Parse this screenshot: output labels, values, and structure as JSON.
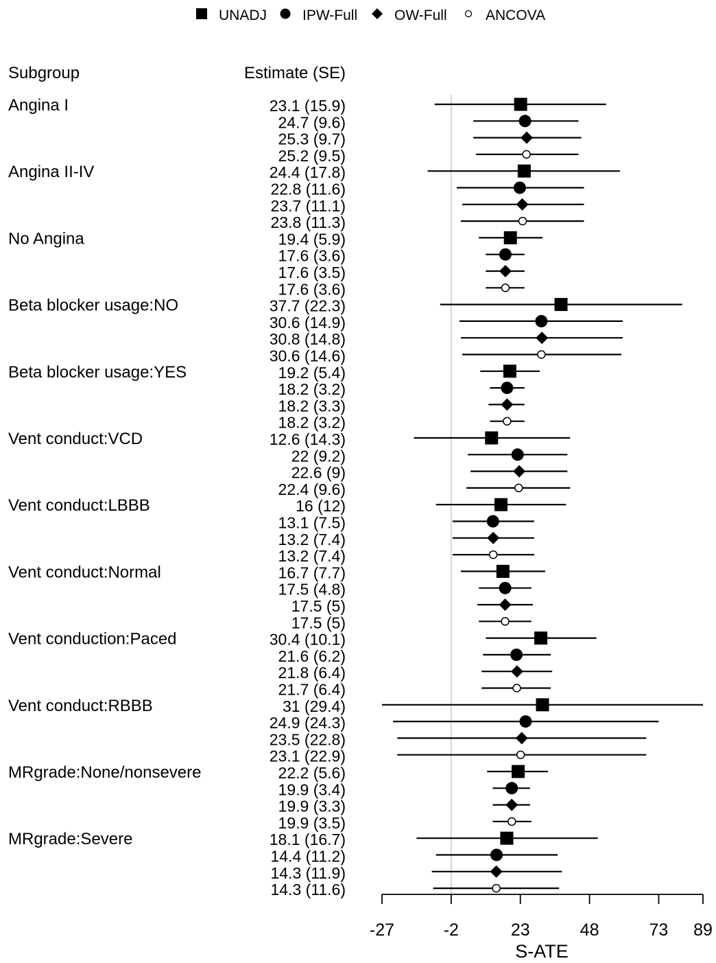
{
  "chart_data": {
    "type": "forest",
    "legend": {
      "placement": "top-center",
      "entries": [
        {
          "label": "UNADJ",
          "marker": "filled-square"
        },
        {
          "label": "IPW-Full",
          "marker": "filled-circle"
        },
        {
          "label": "OW-Full",
          "marker": "filled-diamond"
        },
        {
          "label": "ANCOVA",
          "marker": "open-circle"
        }
      ]
    },
    "column_headers": {
      "subgroup": "Subgroup",
      "estimate": "Estimate (SE)"
    },
    "xlabel": "S-ATE",
    "xlim": [
      -27,
      89
    ],
    "xticks": [
      -27,
      -2,
      23,
      48,
      73,
      89
    ],
    "reference_line": -2,
    "groups": [
      {
        "name": "Angina I",
        "rows": [
          {
            "method": "UNADJ",
            "est": 23.1,
            "label": "23.1 (15.9)",
            "lo": -8,
            "hi": 54
          },
          {
            "method": "IPW-Full",
            "est": 24.7,
            "label": "24.7 (9.6)",
            "lo": 6,
            "hi": 44
          },
          {
            "method": "OW-Full",
            "est": 25.3,
            "label": "25.3 (9.7)",
            "lo": 6,
            "hi": 45
          },
          {
            "method": "ANCOVA",
            "est": 25.2,
            "label": "25.2 (9.5)",
            "lo": 7,
            "hi": 44
          }
        ]
      },
      {
        "name": "Angina II-IV",
        "rows": [
          {
            "method": "UNADJ",
            "est": 24.4,
            "label": "24.4 (17.8)",
            "lo": -10.5,
            "hi": 59
          },
          {
            "method": "IPW-Full",
            "est": 22.8,
            "label": "22.8 (11.6)",
            "lo": 0,
            "hi": 46
          },
          {
            "method": "OW-Full",
            "est": 23.7,
            "label": "23.7 (11.1)",
            "lo": 2,
            "hi": 46
          },
          {
            "method": "ANCOVA",
            "est": 23.8,
            "label": "23.8 (11.3)",
            "lo": 1.5,
            "hi": 46
          }
        ]
      },
      {
        "name": "No Angina",
        "rows": [
          {
            "method": "UNADJ",
            "est": 19.4,
            "label": "19.4 (5.9)",
            "lo": 8,
            "hi": 31
          },
          {
            "method": "IPW-Full",
            "est": 17.6,
            "label": "17.6 (3.6)",
            "lo": 10.5,
            "hi": 24.5
          },
          {
            "method": "OW-Full",
            "est": 17.6,
            "label": "17.6 (3.5)",
            "lo": 10.5,
            "hi": 24.5
          },
          {
            "method": "ANCOVA",
            "est": 17.6,
            "label": "17.6 (3.6)",
            "lo": 10.5,
            "hi": 24.5
          }
        ]
      },
      {
        "name": "Beta blocker usage:NO",
        "rows": [
          {
            "method": "UNADJ",
            "est": 37.7,
            "label": "37.7 (22.3)",
            "lo": -6,
            "hi": 81.5
          },
          {
            "method": "IPW-Full",
            "est": 30.6,
            "label": "30.6 (14.9)",
            "lo": 1,
            "hi": 60
          },
          {
            "method": "OW-Full",
            "est": 30.8,
            "label": "30.8 (14.8)",
            "lo": 1.5,
            "hi": 60
          },
          {
            "method": "ANCOVA",
            "est": 30.6,
            "label": "30.6 (14.6)",
            "lo": 2,
            "hi": 59.5
          }
        ]
      },
      {
        "name": "Beta blocker usage:YES",
        "rows": [
          {
            "method": "UNADJ",
            "est": 19.2,
            "label": "19.2 (5.4)",
            "lo": 8.5,
            "hi": 30
          },
          {
            "method": "IPW-Full",
            "est": 18.2,
            "label": "18.2 (3.2)",
            "lo": 12,
            "hi": 24.5
          },
          {
            "method": "OW-Full",
            "est": 18.2,
            "label": "18.2 (3.3)",
            "lo": 11.5,
            "hi": 24.5
          },
          {
            "method": "ANCOVA",
            "est": 18.2,
            "label": "18.2 (3.2)",
            "lo": 12,
            "hi": 24.5
          }
        ]
      },
      {
        "name": "Vent conduct:VCD",
        "rows": [
          {
            "method": "UNADJ",
            "est": 12.6,
            "label": "12.6 (14.3)",
            "lo": -15.5,
            "hi": 41
          },
          {
            "method": "IPW-Full",
            "est": 22,
            "label": "22 (9.2)",
            "lo": 4,
            "hi": 40
          },
          {
            "method": "OW-Full",
            "est": 22.6,
            "label": "22.6 (9)",
            "lo": 5,
            "hi": 40
          },
          {
            "method": "ANCOVA",
            "est": 22.4,
            "label": "22.4 (9.6)",
            "lo": 3.5,
            "hi": 41
          }
        ]
      },
      {
        "name": "Vent conduct:LBBB",
        "rows": [
          {
            "method": "UNADJ",
            "est": 16,
            "label": "16 (12)",
            "lo": -7.5,
            "hi": 39.5
          },
          {
            "method": "IPW-Full",
            "est": 13.1,
            "label": "13.1 (7.5)",
            "lo": -1.5,
            "hi": 28
          },
          {
            "method": "OW-Full",
            "est": 13.2,
            "label": "13.2 (7.4)",
            "lo": -1.5,
            "hi": 28
          },
          {
            "method": "ANCOVA",
            "est": 13.2,
            "label": "13.2 (7.4)",
            "lo": -1.5,
            "hi": 28
          }
        ]
      },
      {
        "name": "Vent conduct:Normal",
        "rows": [
          {
            "method": "UNADJ",
            "est": 16.7,
            "label": "16.7 (7.7)",
            "lo": 1.5,
            "hi": 32
          },
          {
            "method": "IPW-Full",
            "est": 17.5,
            "label": "17.5 (4.8)",
            "lo": 8,
            "hi": 27
          },
          {
            "method": "OW-Full",
            "est": 17.5,
            "label": "17.5 (5)",
            "lo": 7.5,
            "hi": 27.5
          },
          {
            "method": "ANCOVA",
            "est": 17.5,
            "label": "17.5 (5)",
            "lo": 8,
            "hi": 27
          }
        ]
      },
      {
        "name": "Vent conduction:Paced",
        "rows": [
          {
            "method": "UNADJ",
            "est": 30.4,
            "label": "30.4 (10.1)",
            "lo": 10.5,
            "hi": 50.5
          },
          {
            "method": "IPW-Full",
            "est": 21.6,
            "label": "21.6 (6.2)",
            "lo": 9.5,
            "hi": 34
          },
          {
            "method": "OW-Full",
            "est": 21.8,
            "label": "21.8 (6.4)",
            "lo": 9,
            "hi": 34.5
          },
          {
            "method": "ANCOVA",
            "est": 21.7,
            "label": "21.7 (6.4)",
            "lo": 9,
            "hi": 34
          }
        ]
      },
      {
        "name": "Vent conduct:RBBB",
        "rows": [
          {
            "method": "UNADJ",
            "est": 31,
            "label": "31 (29.4)",
            "lo": -27,
            "hi": 89
          },
          {
            "method": "IPW-Full",
            "est": 24.9,
            "label": "24.9 (24.3)",
            "lo": -23,
            "hi": 73
          },
          {
            "method": "OW-Full",
            "est": 23.5,
            "label": "23.5 (22.8)",
            "lo": -21.5,
            "hi": 68.5
          },
          {
            "method": "ANCOVA",
            "est": 23.1,
            "label": "23.1 (22.9)",
            "lo": -21.5,
            "hi": 68.5
          }
        ]
      },
      {
        "name": "MRgrade:None/nonsevere",
        "rows": [
          {
            "method": "UNADJ",
            "est": 22.2,
            "label": "22.2 (5.6)",
            "lo": 11,
            "hi": 33
          },
          {
            "method": "IPW-Full",
            "est": 19.9,
            "label": "19.9 (3.4)",
            "lo": 13,
            "hi": 26.5
          },
          {
            "method": "OW-Full",
            "est": 19.9,
            "label": "19.9 (3.3)",
            "lo": 13,
            "hi": 26.5
          },
          {
            "method": "ANCOVA",
            "est": 19.9,
            "label": "19.9 (3.5)",
            "lo": 13,
            "hi": 27
          }
        ]
      },
      {
        "name": "MRgrade:Severe",
        "rows": [
          {
            "method": "UNADJ",
            "est": 18.1,
            "label": "18.1 (16.7)",
            "lo": -14.5,
            "hi": 51
          },
          {
            "method": "IPW-Full",
            "est": 14.4,
            "label": "14.4 (11.2)",
            "lo": -7.5,
            "hi": 36.5
          },
          {
            "method": "OW-Full",
            "est": 14.3,
            "label": "14.3 (11.9)",
            "lo": -9,
            "hi": 38
          },
          {
            "method": "ANCOVA",
            "est": 14.3,
            "label": "14.3 (11.6)",
            "lo": -8.5,
            "hi": 37
          }
        ]
      }
    ]
  }
}
